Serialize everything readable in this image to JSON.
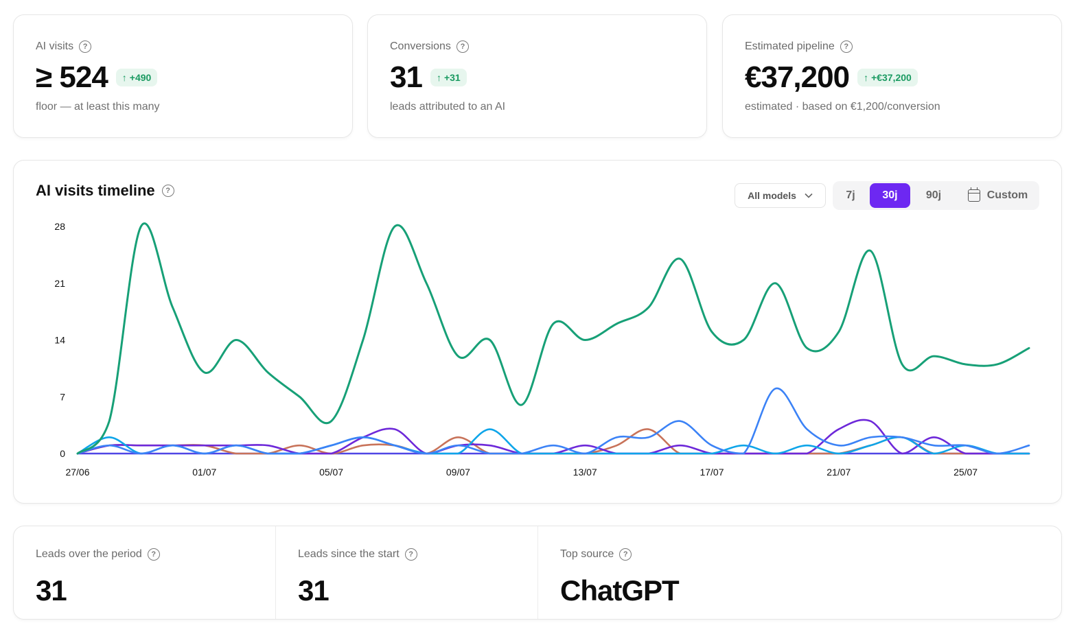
{
  "kpis": [
    {
      "label": "AI visits",
      "value": "≥ 524",
      "delta": "+490",
      "sub": "floor — at least this many"
    },
    {
      "label": "Conversions",
      "value": "31",
      "delta": "+31",
      "sub": "leads attributed to an AI"
    },
    {
      "label": "Estimated pipeline",
      "value": "€37,200",
      "delta": "+€37,200",
      "sub": "estimated · based on €1,200/conversion"
    }
  ],
  "timeline": {
    "title": "AI visits timeline",
    "model_select": "All models",
    "ranges": [
      "7j",
      "30j",
      "90j",
      "Custom"
    ],
    "active_range": "30j"
  },
  "bottom": [
    {
      "label": "Leads over the period",
      "value": "31"
    },
    {
      "label": "Leads since the start",
      "value": "31"
    },
    {
      "label": "Top source",
      "value": "ChatGPT"
    }
  ],
  "icons": {
    "help": "help-circle-icon",
    "delta": "arrow-up-icon",
    "select": "chevron-down-icon",
    "custom": "calendar-icon"
  },
  "colors": {
    "accent": "#6d28f2",
    "delta_text": "#1a9a61",
    "delta_bg": "#e7f6ee"
  },
  "chart_data": {
    "type": "line",
    "x": [
      "27/06",
      "28/06",
      "29/06",
      "30/06",
      "01/07",
      "02/07",
      "03/07",
      "04/07",
      "05/07",
      "06/07",
      "07/07",
      "08/07",
      "09/07",
      "10/07",
      "11/07",
      "12/07",
      "13/07",
      "14/07",
      "15/07",
      "16/07",
      "17/07",
      "18/07",
      "19/07",
      "20/07",
      "21/07",
      "22/07",
      "23/07",
      "24/07",
      "25/07",
      "26/07",
      "27/07"
    ],
    "x_tick_labels": [
      "27/06",
      "01/07",
      "05/07",
      "09/07",
      "13/07",
      "17/07",
      "21/07",
      "25/07"
    ],
    "y_ticks": [
      0,
      7,
      14,
      21,
      28
    ],
    "ylim": [
      0,
      28
    ],
    "series": [
      {
        "color": "#17a077",
        "values": [
          0,
          4,
          28,
          18,
          10,
          14,
          10,
          7,
          4,
          14,
          28,
          21,
          12,
          14,
          6,
          16,
          14,
          16,
          18,
          24,
          15,
          14,
          21,
          13,
          15,
          25,
          11,
          12,
          11,
          11,
          13
        ]
      },
      {
        "color": "#3b82f6",
        "values": [
          0,
          1,
          0,
          1,
          0,
          1,
          0,
          0,
          1,
          2,
          1,
          0,
          1,
          0,
          0,
          1,
          0,
          2,
          2,
          4,
          1,
          0,
          8,
          3,
          1,
          2,
          2,
          1,
          1,
          0,
          1
        ]
      },
      {
        "color": "#0ea5e9",
        "values": [
          0,
          2,
          0,
          1,
          0,
          1,
          0,
          0,
          1,
          2,
          1,
          0,
          0,
          3,
          0,
          0,
          0,
          0,
          0,
          0,
          0,
          1,
          0,
          1,
          0,
          1,
          2,
          0,
          1,
          0,
          0
        ]
      },
      {
        "color": "#6d28d9",
        "values": [
          0,
          1,
          1,
          1,
          1,
          1,
          1,
          0,
          0,
          2,
          3,
          0,
          1,
          1,
          0,
          0,
          1,
          0,
          0,
          1,
          0,
          0,
          0,
          0,
          3,
          4,
          0,
          2,
          0,
          0,
          0
        ]
      },
      {
        "color": "#c8735a",
        "values": [
          0,
          1,
          1,
          1,
          1,
          0,
          0,
          1,
          0,
          1,
          1,
          0,
          2,
          0,
          0,
          0,
          0,
          1,
          3,
          0,
          0,
          0,
          0,
          0,
          0,
          1,
          2,
          0,
          0,
          0,
          0
        ]
      },
      {
        "color": "#4f46e5",
        "values": [
          0,
          0,
          0,
          0,
          0,
          0,
          0,
          0,
          0,
          0,
          0,
          0,
          0,
          0,
          0,
          0,
          0,
          0,
          0,
          0,
          0,
          0,
          0,
          0,
          0,
          0,
          0,
          0,
          0,
          0,
          0
        ]
      }
    ]
  }
}
